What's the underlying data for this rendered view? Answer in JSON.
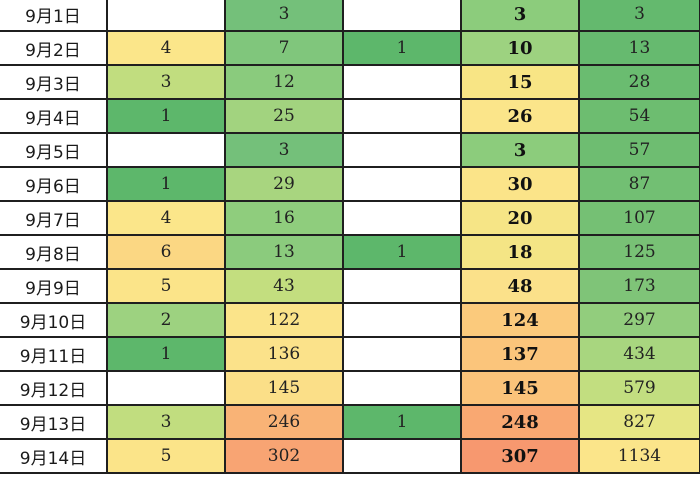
{
  "table": {
    "rows": [
      {
        "date": "9月1日",
        "a": "",
        "b": "3",
        "c": "",
        "d": "3",
        "e": "3",
        "colors": {
          "a": "#ffffff",
          "b": "#74c07a",
          "c": "#ffffff",
          "d": "#8ccc7c",
          "e": "#64b96e"
        }
      },
      {
        "date": "9月2日",
        "a": "4",
        "b": "7",
        "c": "1",
        "d": "10",
        "e": "13",
        "colors": {
          "a": "#fbe68a",
          "b": "#80c67c",
          "c": "#5db76b",
          "d": "#9dd280",
          "e": "#66ba6f"
        }
      },
      {
        "date": "9月3日",
        "a": "3",
        "b": "12",
        "c": "",
        "d": "15",
        "e": "28",
        "colors": {
          "a": "#c1dd7f",
          "b": "#8acb7d",
          "c": "#ffffff",
          "d": "#f8e585",
          "e": "#6abc70"
        }
      },
      {
        "date": "9月4日",
        "a": "1",
        "b": "25",
        "c": "",
        "d": "26",
        "e": "54",
        "colors": {
          "a": "#5db76b",
          "b": "#a2d37f",
          "c": "#ffffff",
          "d": "#fbe58a",
          "e": "#6dbd70"
        }
      },
      {
        "date": "9月5日",
        "a": "",
        "b": "3",
        "c": "",
        "d": "3",
        "e": "57",
        "colors": {
          "a": "#ffffff",
          "b": "#74c07a",
          "c": "#ffffff",
          "d": "#8ccc7c",
          "e": "#6ebd71"
        }
      },
      {
        "date": "9月6日",
        "a": "1",
        "b": "29",
        "c": "",
        "d": "30",
        "e": "87",
        "colors": {
          "a": "#5db76b",
          "b": "#a8d57f",
          "c": "#ffffff",
          "d": "#fbe489",
          "e": "#72bf73"
        }
      },
      {
        "date": "9月7日",
        "a": "4",
        "b": "16",
        "c": "",
        "d": "20",
        "e": "107",
        "colors": {
          "a": "#fbe68a",
          "b": "#8fcd7d",
          "c": "#ffffff",
          "d": "#f6e586",
          "e": "#75c074"
        }
      },
      {
        "date": "9月8日",
        "a": "6",
        "b": "13",
        "c": "1",
        "d": "18",
        "e": "125",
        "colors": {
          "a": "#fbd783",
          "b": "#8bcb7d",
          "c": "#5db76b",
          "d": "#f4e585",
          "e": "#78c175"
        }
      },
      {
        "date": "9月9日",
        "a": "5",
        "b": "43",
        "c": "",
        "d": "48",
        "e": "173",
        "colors": {
          "a": "#fbe489",
          "b": "#c3de7f",
          "c": "#ffffff",
          "d": "#fbe18a",
          "e": "#7fc478"
        }
      },
      {
        "date": "9月10日",
        "a": "2",
        "b": "122",
        "c": "",
        "d": "124",
        "e": "297",
        "colors": {
          "a": "#9dd280",
          "b": "#fbe48a",
          "c": "#ffffff",
          "d": "#fbca7c",
          "e": "#92cd7d"
        }
      },
      {
        "date": "9月11日",
        "a": "1",
        "b": "136",
        "c": "",
        "d": "137",
        "e": "434",
        "colors": {
          "a": "#5db76b",
          "b": "#fbe28a",
          "c": "#ffffff",
          "d": "#fbc57b",
          "e": "#a8d67f"
        }
      },
      {
        "date": "9月12日",
        "a": "",
        "b": "145",
        "c": "",
        "d": "145",
        "e": "579",
        "colors": {
          "a": "#ffffff",
          "b": "#fbdf88",
          "c": "#ffffff",
          "d": "#fbc37a",
          "e": "#c2de80"
        }
      },
      {
        "date": "9月13日",
        "a": "3",
        "b": "246",
        "c": "1",
        "d": "248",
        "e": "827",
        "colors": {
          "a": "#c1dd7f",
          "b": "#f9b376",
          "c": "#5db76b",
          "d": "#f9a872",
          "e": "#e6e684"
        }
      },
      {
        "date": "9月14日",
        "a": "5",
        "b": "302",
        "c": "",
        "d": "307",
        "e": "1134",
        "colors": {
          "a": "#fbe489",
          "b": "#f8a473",
          "c": "#ffffff",
          "d": "#f7986f",
          "e": "#fbe58a"
        }
      }
    ]
  }
}
